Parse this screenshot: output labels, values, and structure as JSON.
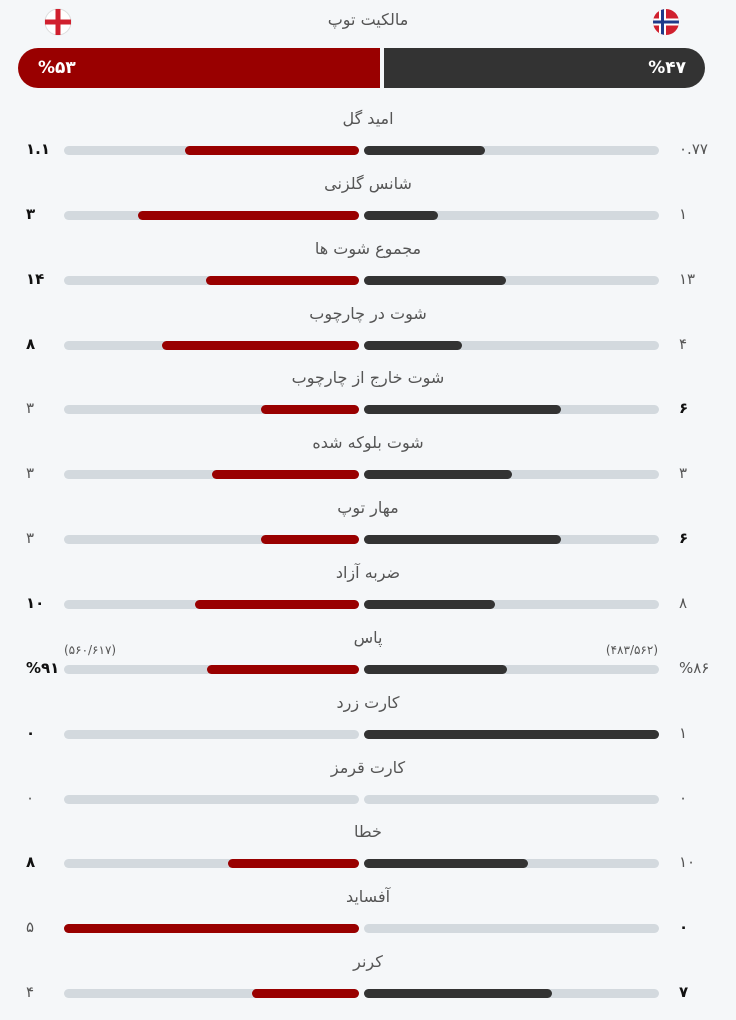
{
  "header": {
    "title": "مالکیت توپ",
    "home": {
      "value": 53,
      "label": "%۵۳"
    },
    "away": {
      "value": 47,
      "label": "%۴۷"
    }
  },
  "stats": [
    {
      "name": "امید گل",
      "home": {
        "value": 1.1,
        "label": "۱.۱"
      },
      "away": {
        "value": 0.77,
        "label": "۰.۷۷"
      },
      "highlight": "home"
    },
    {
      "name": "شانس گلزنی",
      "home": {
        "value": 3,
        "label": "۳"
      },
      "away": {
        "value": 1,
        "label": "۱"
      },
      "highlight": "home"
    },
    {
      "name": "مجموع شوت ها",
      "home": {
        "value": 14,
        "label": "۱۴"
      },
      "away": {
        "value": 13,
        "label": "۱۳"
      },
      "highlight": "home"
    },
    {
      "name": "شوت در چارچوب",
      "home": {
        "value": 8,
        "label": "۸"
      },
      "away": {
        "value": 4,
        "label": "۴"
      },
      "highlight": "home"
    },
    {
      "name": "شوت خارج از چارچوب",
      "home": {
        "value": 3,
        "label": "۳"
      },
      "away": {
        "value": 6,
        "label": "۶"
      },
      "highlight": "away"
    },
    {
      "name": "شوت بلوکه شده",
      "home": {
        "value": 3,
        "label": "۳"
      },
      "away": {
        "value": 3,
        "label": "۳"
      },
      "highlight": "none"
    },
    {
      "name": "مهار توپ",
      "home": {
        "value": 3,
        "label": "۳"
      },
      "away": {
        "value": 6,
        "label": "۶"
      },
      "highlight": "away"
    },
    {
      "name": "ضربه آزاد",
      "home": {
        "value": 10,
        "label": "۱۰"
      },
      "away": {
        "value": 8,
        "label": "۸"
      },
      "highlight": "home"
    },
    {
      "name": "پاس",
      "home": {
        "value": 91,
        "label": "%۹۱"
      },
      "away": {
        "value": 86,
        "label": "%۸۶"
      },
      "home_detail": "(۵۶۰/۶۱۷)",
      "away_detail": "(۴۸۳/۵۶۲)",
      "highlight": "home"
    },
    {
      "name": "کارت زرد",
      "home": {
        "value": 0,
        "label": "۰"
      },
      "away": {
        "value": 1,
        "label": "۱"
      },
      "highlight": "home"
    },
    {
      "name": "کارت قرمز",
      "home": {
        "value": 0,
        "label": "۰"
      },
      "away": {
        "value": 0,
        "label": "۰"
      },
      "highlight": "none"
    },
    {
      "name": "خطا",
      "home": {
        "value": 8,
        "label": "۸"
      },
      "away": {
        "value": 10,
        "label": "۱۰"
      },
      "highlight": "home"
    },
    {
      "name": "آفساید",
      "home": {
        "value": 5,
        "label": "۵"
      },
      "away": {
        "value": 0,
        "label": "۰"
      },
      "highlight": "away"
    },
    {
      "name": "کرنر",
      "home": {
        "value": 4,
        "label": "۴"
      },
      "away": {
        "value": 7,
        "label": "۷"
      },
      "highlight": "away"
    }
  ]
}
